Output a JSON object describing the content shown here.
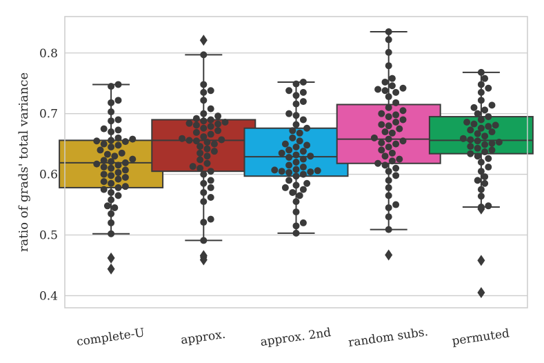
{
  "chart_data": {
    "type": "box",
    "title": "",
    "xlabel": "",
    "ylabel": "ratio of grads' total variance",
    "ylim": [
      0.38,
      0.86
    ],
    "yticks": [
      "0.4",
      "0.5",
      "0.6",
      "0.7",
      "0.8"
    ],
    "grid": "horizontal",
    "categories": [
      "complete-U",
      "approx.",
      "approx. 2nd",
      "random subs.",
      "permuted"
    ],
    "colors": [
      "#c9a227",
      "#a8322b",
      "#18a9e0",
      "#e35aa9",
      "#14a05a"
    ],
    "series": [
      {
        "category": "complete-U",
        "whisker_low": 0.502,
        "q1": 0.578,
        "median": 0.619,
        "q3": 0.656,
        "whisker_high": 0.748,
        "outliers": [
          0.462,
          0.444
        ],
        "points": [
          0.748,
          0.745,
          0.722,
          0.718,
          0.703,
          0.69,
          0.688,
          0.675,
          0.673,
          0.67,
          0.66,
          0.658,
          0.656,
          0.655,
          0.654,
          0.65,
          0.648,
          0.645,
          0.64,
          0.635,
          0.633,
          0.63,
          0.625,
          0.623,
          0.621,
          0.619,
          0.617,
          0.615,
          0.612,
          0.61,
          0.607,
          0.603,
          0.6,
          0.598,
          0.595,
          0.592,
          0.588,
          0.585,
          0.58,
          0.578,
          0.575,
          0.57,
          0.565,
          0.558,
          0.548,
          0.545,
          0.535,
          0.52,
          0.502
        ]
      },
      {
        "category": "approx.",
        "whisker_low": 0.491,
        "q1": 0.605,
        "median": 0.656,
        "q3": 0.69,
        "whisker_high": 0.797,
        "outliers": [
          0.821,
          0.466,
          0.459
        ],
        "points": [
          0.797,
          0.748,
          0.738,
          0.735,
          0.722,
          0.708,
          0.7,
          0.696,
          0.692,
          0.69,
          0.688,
          0.686,
          0.684,
          0.683,
          0.681,
          0.679,
          0.676,
          0.672,
          0.669,
          0.666,
          0.662,
          0.659,
          0.657,
          0.656,
          0.655,
          0.653,
          0.65,
          0.646,
          0.642,
          0.638,
          0.635,
          0.63,
          0.624,
          0.618,
          0.613,
          0.61,
          0.605,
          0.6,
          0.59,
          0.585,
          0.578,
          0.57,
          0.562,
          0.555,
          0.526,
          0.521,
          0.491,
          0.464
        ]
      },
      {
        "category": "approx. 2nd",
        "whisker_low": 0.503,
        "q1": 0.597,
        "median": 0.629,
        "q3": 0.676,
        "whisker_high": 0.752,
        "outliers": [],
        "points": [
          0.752,
          0.749,
          0.738,
          0.735,
          0.73,
          0.72,
          0.716,
          0.7,
          0.697,
          0.69,
          0.682,
          0.676,
          0.672,
          0.668,
          0.66,
          0.655,
          0.65,
          0.648,
          0.645,
          0.64,
          0.638,
          0.635,
          0.632,
          0.63,
          0.628,
          0.625,
          0.62,
          0.615,
          0.612,
          0.608,
          0.607,
          0.606,
          0.605,
          0.604,
          0.603,
          0.6,
          0.597,
          0.59,
          0.585,
          0.582,
          0.578,
          0.575,
          0.57,
          0.565,
          0.555,
          0.538,
          0.52,
          0.515,
          0.503
        ]
      },
      {
        "category": "random subs.",
        "whisker_low": 0.509,
        "q1": 0.618,
        "median": 0.658,
        "q3": 0.715,
        "whisker_high": 0.835,
        "outliers": [
          0.467
        ],
        "points": [
          0.835,
          0.822,
          0.801,
          0.779,
          0.758,
          0.752,
          0.746,
          0.742,
          0.74,
          0.738,
          0.735,
          0.728,
          0.718,
          0.71,
          0.705,
          0.7,
          0.698,
          0.695,
          0.69,
          0.686,
          0.682,
          0.68,
          0.675,
          0.67,
          0.668,
          0.66,
          0.658,
          0.655,
          0.652,
          0.65,
          0.645,
          0.64,
          0.635,
          0.63,
          0.625,
          0.622,
          0.618,
          0.615,
          0.61,
          0.605,
          0.598,
          0.59,
          0.578,
          0.565,
          0.55,
          0.545,
          0.53,
          0.509
        ]
      },
      {
        "category": "permuted",
        "whisker_low": 0.546,
        "q1": 0.634,
        "median": 0.656,
        "q3": 0.695,
        "whisker_high": 0.768,
        "outliers": [
          0.543,
          0.458,
          0.405
        ],
        "points": [
          0.768,
          0.758,
          0.748,
          0.742,
          0.735,
          0.722,
          0.714,
          0.71,
          0.706,
          0.7,
          0.695,
          0.69,
          0.686,
          0.683,
          0.681,
          0.679,
          0.676,
          0.673,
          0.67,
          0.667,
          0.663,
          0.659,
          0.657,
          0.655,
          0.653,
          0.651,
          0.649,
          0.646,
          0.643,
          0.64,
          0.637,
          0.634,
          0.63,
          0.626,
          0.62,
          0.612,
          0.605,
          0.596,
          0.59,
          0.585,
          0.575,
          0.564,
          0.548,
          0.546
        ]
      }
    ]
  }
}
